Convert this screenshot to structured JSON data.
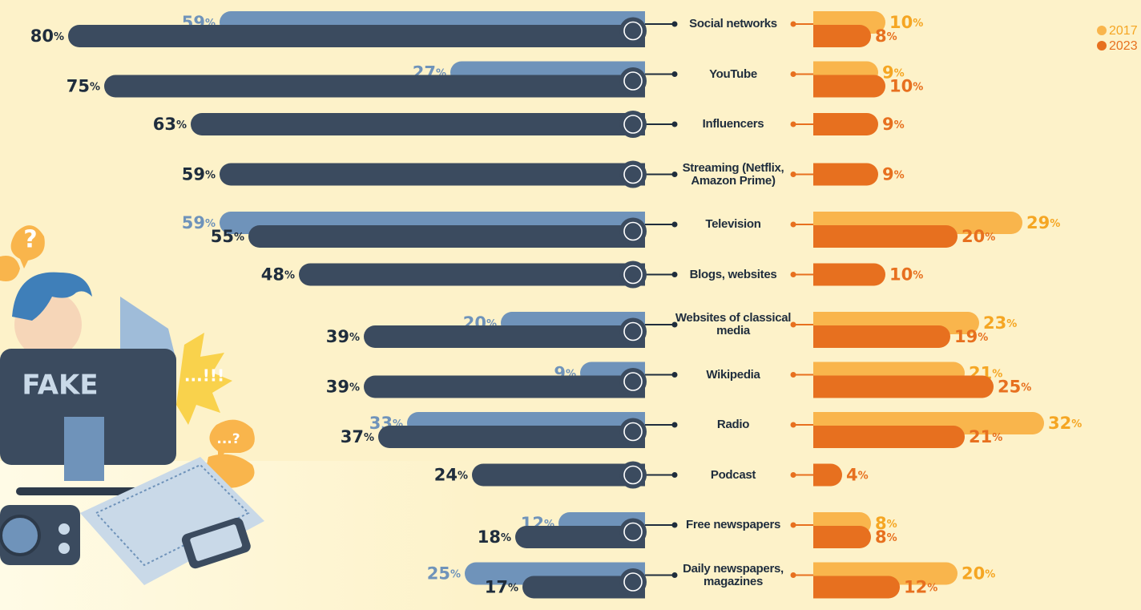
{
  "chart_data": {
    "type": "butterfly",
    "categories": [
      "Social networks",
      "YouTube",
      "Influencers",
      "Streaming (Netflix, Amazon Prime)",
      "Television",
      "Blogs, websites",
      "Websites of classical media",
      "Wikipedia",
      "Radio",
      "Podcast",
      "Free newspapers",
      "Daily newspapers, magazines"
    ],
    "left": {
      "series": [
        {
          "color": "#6f93ba",
          "values": [
            59,
            27,
            null,
            null,
            59,
            null,
            20,
            9,
            33,
            null,
            12,
            25
          ],
          "value_labels": [
            "59%",
            "27%",
            null,
            null,
            "59%",
            null,
            "20%",
            "9%",
            "33%",
            null,
            "12%",
            "25%"
          ]
        },
        {
          "color": "#3b4b5f",
          "values": [
            80,
            75,
            63,
            59,
            55,
            48,
            39,
            39,
            37,
            24,
            18,
            17
          ],
          "value_labels": [
            "80%",
            "75%",
            "63%",
            "59%",
            "55%",
            "48%",
            "39%",
            "39%",
            "37%",
            "24%",
            "18%",
            "17%"
          ]
        }
      ]
    },
    "right": {
      "series": [
        {
          "name": "2017",
          "color": "#f9b54c",
          "values": [
            10,
            9,
            null,
            null,
            29,
            null,
            23,
            21,
            32,
            null,
            8,
            20
          ],
          "value_labels": [
            "10%",
            "9%",
            null,
            null,
            "29%",
            null,
            "23%",
            "21%",
            "32%",
            null,
            "8%",
            "20%"
          ]
        },
        {
          "name": "2023",
          "color": "#e7701f",
          "values": [
            8,
            10,
            9,
            9,
            20,
            10,
            19,
            25,
            21,
            4,
            8,
            12
          ],
          "value_labels": [
            "8%",
            "10%",
            "9%",
            "9%",
            "20%",
            "10%",
            "19%",
            "25%",
            "21%",
            "4%",
            "8%",
            "12%"
          ]
        }
      ]
    },
    "annotations": [
      "?",
      "FAKE",
      "...!!!",
      "...?"
    ]
  }
}
